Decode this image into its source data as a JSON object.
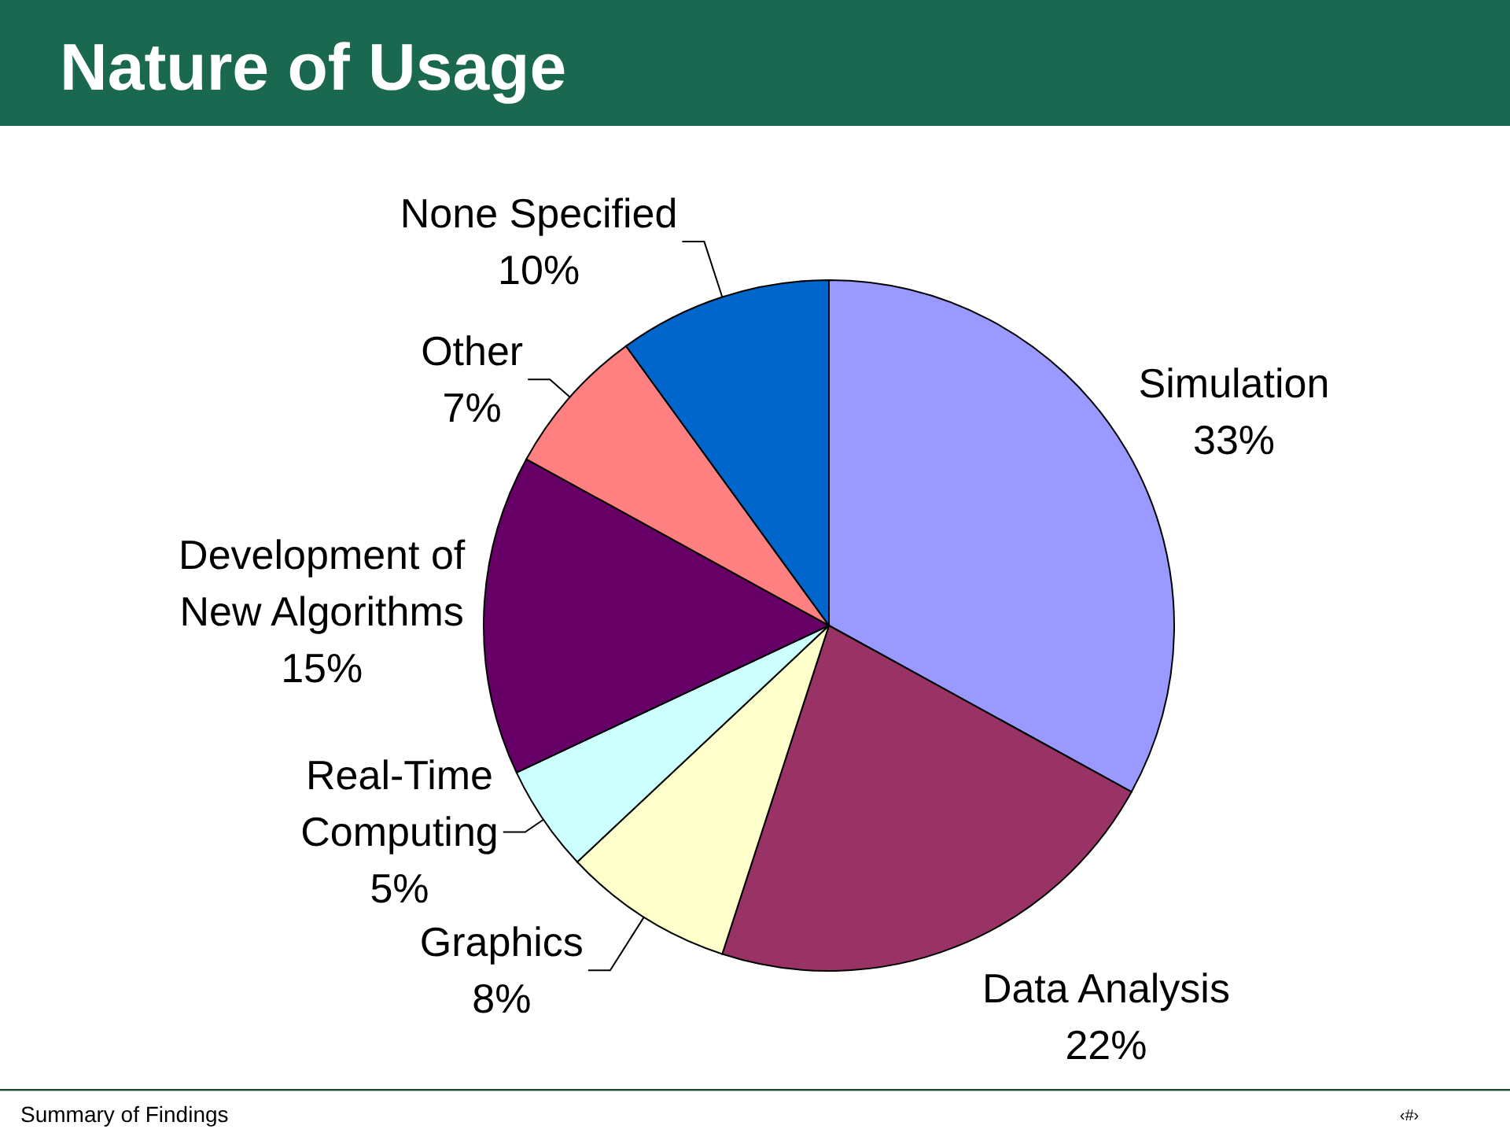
{
  "chart_data": {
    "type": "pie",
    "title": "Nature of Usage",
    "categories": [
      "Simulation",
      "Data Analysis",
      "Graphics",
      "Real-Time Computing",
      "Development of New Algorithms",
      "Other",
      "None Specified"
    ],
    "values": [
      33,
      22,
      8,
      5,
      15,
      7,
      10
    ],
    "colors": [
      "#9999ff",
      "#993366",
      "#ffffcc",
      "#ccffff",
      "#660066",
      "#ff8080",
      "#0066cc"
    ],
    "value_labels": [
      "33%",
      "22%",
      "8%",
      "5%",
      "15%",
      "7%",
      "10%"
    ],
    "annotations": [
      "Summary of Findings",
      "‹#›"
    ]
  }
}
